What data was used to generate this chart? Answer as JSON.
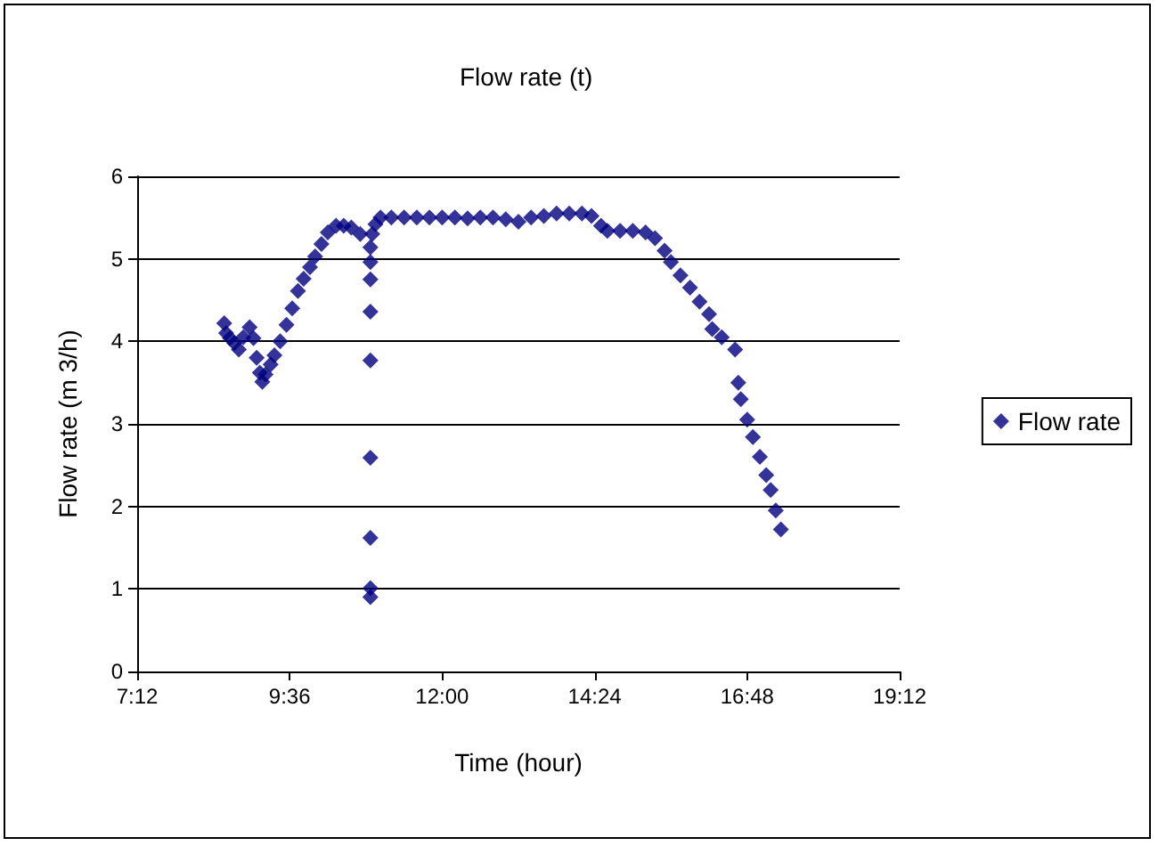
{
  "chart_data": {
    "type": "scatter",
    "title": "Flow rate (t)",
    "xlabel": "Time (hour)",
    "ylabel": "Flow rate (m 3/h)",
    "xlim": [
      7.2,
      19.2
    ],
    "xticks": [
      {
        "value": 7.2,
        "label": "7:12"
      },
      {
        "value": 9.6,
        "label": "9:36"
      },
      {
        "value": 12,
        "label": "12:00"
      },
      {
        "value": 14.4,
        "label": "14:24"
      },
      {
        "value": 16.8,
        "label": "16:48"
      },
      {
        "value": 19.2,
        "label": "19:12"
      }
    ],
    "ylim": [
      0,
      6
    ],
    "yticks": [
      0,
      1,
      2,
      3,
      4,
      5,
      6
    ],
    "grid": "y",
    "legend": "right",
    "marker": "diamond",
    "series": [
      {
        "name": "Flow rate",
        "color": "#000080",
        "x": [
          8.57,
          8.6,
          8.66,
          8.73,
          8.8,
          8.87,
          8.97,
          9.03,
          9.08,
          9.13,
          9.17,
          9.22,
          9.3,
          9.36,
          9.45,
          9.55,
          9.64,
          9.73,
          9.82,
          9.92,
          10.0,
          10.1,
          10.2,
          10.33,
          10.45,
          10.57,
          10.71,
          10.87,
          10.87,
          10.87,
          10.87,
          10.87,
          10.87,
          10.87,
          10.87,
          10.87,
          10.9,
          10.95,
          11.03,
          11.2,
          11.4,
          11.6,
          11.8,
          12.0,
          12.2,
          12.4,
          12.6,
          12.8,
          13.0,
          13.2,
          13.4,
          13.6,
          13.8,
          14.0,
          14.2,
          14.35,
          14.5,
          14.6,
          14.8,
          15.0,
          15.2,
          15.35,
          15.5,
          15.6,
          15.75,
          15.9,
          16.05,
          16.2,
          16.25,
          16.4,
          16.61,
          16.66,
          16.7,
          16.8,
          16.89,
          17.0,
          17.1,
          17.17,
          17.25,
          17.33
        ],
        "values": [
          4.22,
          4.1,
          4.04,
          3.98,
          3.9,
          4.05,
          4.17,
          4.04,
          3.8,
          3.62,
          3.51,
          3.6,
          3.72,
          3.83,
          4.0,
          4.2,
          4.4,
          4.61,
          4.76,
          4.9,
          5.03,
          5.18,
          5.32,
          5.4,
          5.4,
          5.38,
          5.3,
          5.14,
          4.96,
          4.75,
          4.36,
          3.77,
          2.59,
          1.62,
          1.01,
          0.9,
          5.3,
          5.42,
          5.5,
          5.5,
          5.5,
          5.5,
          5.5,
          5.5,
          5.5,
          5.49,
          5.5,
          5.5,
          5.48,
          5.45,
          5.5,
          5.52,
          5.55,
          5.55,
          5.55,
          5.52,
          5.4,
          5.34,
          5.34,
          5.34,
          5.32,
          5.25,
          5.1,
          4.96,
          4.8,
          4.65,
          4.48,
          4.33,
          4.15,
          4.05,
          3.9,
          3.5,
          3.3,
          3.05,
          2.84,
          2.6,
          2.38,
          2.2,
          1.95,
          1.72
        ]
      }
    ]
  }
}
